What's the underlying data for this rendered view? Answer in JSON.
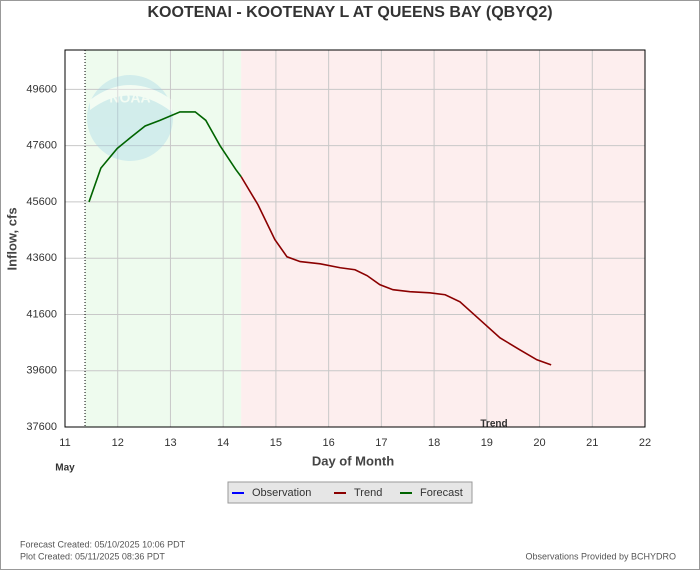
{
  "chart_data": {
    "type": "line",
    "title": "KOOTENAI - KOOTENAY L AT QUEENS BAY  (QBYQ2)",
    "x_label": "Day of Month",
    "y_label": "Inflow, cfs",
    "month_label": "May",
    "annotation": "Trend",
    "xlim": [
      11,
      22
    ],
    "xticks": [
      11,
      12,
      13,
      14,
      15,
      16,
      17,
      18,
      19,
      20,
      21,
      22
    ],
    "ylim": [
      37600,
      51000
    ],
    "yticks": [
      37600,
      39600,
      41600,
      43600,
      45600,
      47600,
      49600
    ],
    "grid": true,
    "now_line": 11.38,
    "series": [
      {
        "name": "Observation",
        "color": "#0000ff",
        "x": [],
        "values": []
      },
      {
        "name": "Trend",
        "color": "#8b0000",
        "x": [
          14.34,
          14.66,
          14.98,
          15.21,
          15.46,
          15.84,
          16.22,
          16.5,
          16.73,
          16.97,
          17.22,
          17.54,
          17.92,
          18.21,
          18.49,
          18.87,
          19.25,
          19.63,
          19.95,
          20.22
        ],
        "values": [
          46500,
          45500,
          44260,
          43650,
          43480,
          43400,
          43260,
          43190,
          42980,
          42660,
          42480,
          42410,
          42370,
          42300,
          42050,
          41410,
          40770,
          40340,
          39990,
          39810
        ]
      },
      {
        "name": "Forecast",
        "color": "#006400",
        "x": [
          11.455,
          11.68,
          11.99,
          12.25,
          12.52,
          12.8,
          13.18,
          13.47,
          13.67,
          13.94,
          14.24,
          14.34
        ],
        "values": [
          45600,
          46800,
          47500,
          47900,
          48300,
          48500,
          48800,
          48800,
          48500,
          47600,
          46750,
          46500
        ]
      }
    ],
    "footer": {
      "forecast_created": "Forecast Created: 05/10/2025 10:06 PDT",
      "plot_created": "Plot Created: 05/11/2025 08:36 PDT",
      "provider": "Observations Provided by BCHYDRO"
    }
  }
}
